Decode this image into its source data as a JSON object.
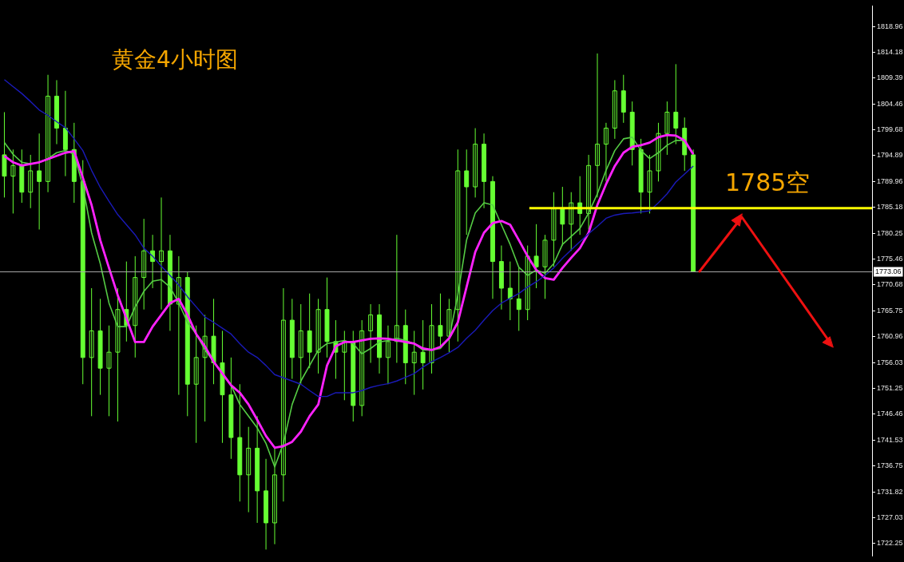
{
  "chart_data": {
    "type": "candlestick",
    "title": "黄金4小时图",
    "categories": [
      null,
      null,
      null,
      null,
      null,
      null,
      null,
      null,
      null,
      null,
      null,
      null,
      null,
      null,
      null,
      null,
      null,
      null,
      null,
      null,
      null,
      null,
      null,
      null,
      null,
      null,
      null,
      null,
      null,
      null,
      null,
      null,
      null,
      null,
      null,
      null,
      null,
      null,
      null,
      null,
      null,
      null,
      null,
      null,
      null,
      null,
      null,
      null,
      null,
      null,
      null,
      null,
      null,
      null,
      null,
      null,
      null,
      null,
      null,
      null,
      null,
      null,
      null,
      null,
      null,
      null,
      null,
      null,
      null,
      null,
      null,
      null,
      null,
      null,
      null,
      null,
      null,
      null,
      null,
      null,
      null,
      null,
      null,
      null,
      null,
      null,
      null,
      null,
      null,
      null,
      null,
      null,
      null,
      null,
      null,
      null,
      null,
      null,
      null,
      null
    ],
    "color": "#66ff33",
    "ohlc": [
      [
        1795,
        1803,
        1787,
        1791
      ],
      [
        1791,
        1796,
        1784,
        1793
      ],
      [
        1793,
        1796,
        1786,
        1788
      ],
      [
        1788,
        1795,
        1785,
        1792
      ],
      [
        1792,
        1799,
        1781,
        1790
      ],
      [
        1790,
        1810,
        1788,
        1806
      ],
      [
        1806,
        1809,
        1797,
        1800
      ],
      [
        1800,
        1807,
        1791,
        1796
      ],
      [
        1796,
        1801,
        1786,
        1790
      ],
      [
        1790,
        1794,
        1752,
        1757
      ],
      [
        1757,
        1770,
        1746,
        1762
      ],
      [
        1762,
        1768,
        1750,
        1755
      ],
      [
        1755,
        1763,
        1746,
        1758
      ],
      [
        1758,
        1770,
        1745,
        1766
      ],
      [
        1766,
        1775,
        1760,
        1763
      ],
      [
        1763,
        1776,
        1757,
        1772
      ],
      [
        1772,
        1783,
        1766,
        1777
      ],
      [
        1777,
        1780,
        1770,
        1775
      ],
      [
        1775,
        1787,
        1766,
        1777
      ],
      [
        1777,
        1780,
        1762,
        1767
      ],
      [
        1767,
        1776,
        1750,
        1772
      ],
      [
        1772,
        1773,
        1746,
        1752
      ],
      [
        1752,
        1763,
        1741,
        1757
      ],
      [
        1757,
        1765,
        1745,
        1761
      ],
      [
        1761,
        1768,
        1752,
        1756
      ],
      [
        1756,
        1762,
        1741,
        1750
      ],
      [
        1750,
        1757,
        1738,
        1742
      ],
      [
        1742,
        1752,
        1730,
        1735
      ],
      [
        1735,
        1744,
        1728,
        1740
      ],
      [
        1740,
        1746,
        1726,
        1732
      ],
      [
        1732,
        1738,
        1721,
        1726
      ],
      [
        1726,
        1740,
        1722,
        1735
      ],
      [
        1735,
        1770,
        1730,
        1764
      ],
      [
        1764,
        1768,
        1753,
        1757
      ],
      [
        1757,
        1767,
        1752,
        1762
      ],
      [
        1762,
        1769,
        1755,
        1758
      ],
      [
        1758,
        1768,
        1754,
        1766
      ],
      [
        1766,
        1772,
        1757,
        1760
      ],
      [
        1760,
        1764,
        1753,
        1758
      ],
      [
        1758,
        1762,
        1749,
        1760
      ],
      [
        1760,
        1762,
        1745,
        1748
      ],
      [
        1748,
        1764,
        1746,
        1762
      ],
      [
        1762,
        1767,
        1756,
        1765
      ],
      [
        1765,
        1767,
        1754,
        1757
      ],
      [
        1757,
        1763,
        1752,
        1760
      ],
      [
        1760,
        1780,
        1756,
        1763
      ],
      [
        1763,
        1766,
        1752,
        1756
      ],
      [
        1756,
        1762,
        1750,
        1758
      ],
      [
        1758,
        1764,
        1751,
        1756
      ],
      [
        1756,
        1767,
        1754,
        1763
      ],
      [
        1763,
        1769,
        1759,
        1761
      ],
      [
        1761,
        1768,
        1758,
        1766
      ],
      [
        1766,
        1796,
        1760,
        1792
      ],
      [
        1792,
        1796,
        1780,
        1789
      ],
      [
        1789,
        1800,
        1787,
        1797
      ],
      [
        1797,
        1799,
        1785,
        1790
      ],
      [
        1790,
        1791,
        1768,
        1775
      ],
      [
        1775,
        1778,
        1766,
        1770
      ],
      [
        1770,
        1775,
        1764,
        1768
      ],
      [
        1768,
        1774,
        1762,
        1766
      ],
      [
        1766,
        1778,
        1764,
        1776
      ],
      [
        1776,
        1782,
        1770,
        1774
      ],
      [
        1774,
        1780,
        1768,
        1779
      ],
      [
        1779,
        1788,
        1774,
        1785
      ],
      [
        1785,
        1789,
        1778,
        1782
      ],
      [
        1782,
        1788,
        1777,
        1786
      ],
      [
        1786,
        1791,
        1780,
        1784
      ],
      [
        1784,
        1795,
        1781,
        1793
      ],
      [
        1793,
        1814,
        1787,
        1797
      ],
      [
        1797,
        1801,
        1790,
        1800
      ],
      [
        1800,
        1809,
        1798,
        1807
      ],
      [
        1807,
        1810,
        1801,
        1803
      ],
      [
        1803,
        1805,
        1793,
        1796
      ],
      [
        1796,
        1798,
        1784,
        1788
      ],
      [
        1788,
        1795,
        1784,
        1792
      ],
      [
        1792,
        1801,
        1790,
        1799
      ],
      [
        1799,
        1805,
        1795,
        1803
      ],
      [
        1803,
        1812,
        1797,
        1800
      ],
      [
        1800,
        1802,
        1792,
        1795
      ],
      [
        1795,
        1796,
        1773.1,
        1773.1
      ],
      null,
      null,
      null,
      null,
      null,
      null,
      null,
      null,
      null,
      null,
      null,
      null,
      null,
      null,
      null,
      null,
      null,
      null,
      null,
      null
    ],
    "series": [
      {
        "type": "line",
        "color": "#55cc44",
        "values": [
          1797.3,
          1795.1,
          1793.6,
          1793.3,
          1793.6,
          1794.3,
          1795.4,
          1795.8,
          1795.1,
          1789.2,
          1780.4,
          1774.6,
          1767.2,
          1762.8,
          1762.8,
          1766.5,
          1769.4,
          1771.3,
          1771.6,
          1770.2,
          1767.2,
          1763.6,
          1761.4,
          1758.4,
          1756.2,
          1754.0,
          1751.8,
          1748.2,
          1746.0,
          1743.8,
          1740.9,
          1736.5,
          1740.9,
          1748.2,
          1752.6,
          1755.5,
          1758.4,
          1759.6,
          1759.9,
          1760.2,
          1759.6,
          1757.7,
          1758.7,
          1759.9,
          1760.2,
          1760.6,
          1760.2,
          1759.6,
          1758.4,
          1758.4,
          1758.7,
          1760.6,
          1768.7,
          1779.0,
          1784.1,
          1786.0,
          1785.6,
          1781.9,
          1778.2,
          1773.9,
          1772.4,
          1773.4,
          1772.8,
          1774.6,
          1778.2,
          1779.7,
          1781.2,
          1784.1,
          1787.7,
          1792.1,
          1795.8,
          1798.0,
          1798.3,
          1795.8,
          1794.3,
          1795.4,
          1796.8,
          1797.7,
          1797.7,
          1795.1,
          null,
          null,
          null,
          null,
          null,
          null,
          null,
          null,
          null,
          null,
          null,
          null,
          null,
          null,
          null,
          null,
          null,
          null,
          null,
          null
        ]
      },
      {
        "type": "line",
        "color": "#ff22ff",
        "values": [
          1794.8,
          1793.6,
          1793.0,
          1793.3,
          1793.6,
          1794.2,
          1794.8,
          1795.4,
          1795.7,
          1790.7,
          1785.6,
          1779.0,
          1773.8,
          1768.7,
          1764.3,
          1759.9,
          1759.9,
          1762.8,
          1765.0,
          1767.2,
          1768.0,
          1765.0,
          1761.4,
          1759.1,
          1756.2,
          1754.0,
          1751.8,
          1750.4,
          1748.2,
          1745.3,
          1742.3,
          1740.1,
          1740.4,
          1741.2,
          1743.1,
          1746.0,
          1748.2,
          1755.5,
          1759.1,
          1759.9,
          1759.9,
          1760.2,
          1760.5,
          1760.6,
          1760.5,
          1760.2,
          1759.9,
          1759.6,
          1758.7,
          1758.4,
          1759.0,
          1760.6,
          1763.6,
          1770.2,
          1776.8,
          1780.4,
          1782.2,
          1782.6,
          1781.9,
          1779.0,
          1776.0,
          1773.4,
          1771.9,
          1771.6,
          1773.8,
          1775.7,
          1777.5,
          1780.4,
          1785.6,
          1789.5,
          1792.9,
          1795.4,
          1796.5,
          1796.8,
          1797.3,
          1798.3,
          1798.7,
          1798.6,
          1797.7,
          1795.1,
          null,
          null,
          null,
          null,
          null,
          null,
          null,
          null,
          null,
          null,
          null,
          null,
          null,
          null,
          null,
          null,
          null,
          null,
          null,
          null
        ]
      },
      {
        "type": "line",
        "color": "#1a1ab8",
        "values": [
          1809.1,
          1807.8,
          1806.5,
          1805.0,
          1803.4,
          1802.4,
          1801.2,
          1800.1,
          1798.0,
          1795.8,
          1792.1,
          1788.9,
          1786.3,
          1783.8,
          1781.9,
          1780.0,
          1777.5,
          1776.0,
          1774.1,
          1772.4,
          1770.6,
          1768.4,
          1766.5,
          1764.6,
          1763.6,
          1762.5,
          1761.4,
          1759.6,
          1758.0,
          1757.0,
          1755.5,
          1753.8,
          1753.2,
          1752.6,
          1752.0,
          1750.8,
          1749.7,
          1749.7,
          1750.4,
          1750.4,
          1750.4,
          1750.8,
          1751.4,
          1751.8,
          1752.1,
          1752.6,
          1753.3,
          1754.0,
          1755.2,
          1756.2,
          1757.0,
          1757.9,
          1758.9,
          1760.6,
          1762.1,
          1764.0,
          1765.8,
          1767.2,
          1768.1,
          1769.0,
          1770.2,
          1771.2,
          1772.4,
          1773.8,
          1775.6,
          1777.2,
          1778.7,
          1780.2,
          1781.6,
          1783.1,
          1783.7,
          1784.0,
          1784.1,
          1784.3,
          1784.5,
          1786.0,
          1787.7,
          1789.9,
          1791.4,
          1792.9,
          null,
          null,
          null,
          null,
          null,
          null,
          null,
          null,
          null,
          null,
          null,
          null,
          null,
          null,
          null,
          null,
          null,
          null,
          null,
          null
        ]
      }
    ],
    "ylim": [
      1719.77,
      1822.92
    ],
    "yticks": [
      1722.25,
      1727.03,
      1731.82,
      1736.75,
      1741.53,
      1746.46,
      1751.25,
      1756.03,
      1760.96,
      1765.75,
      1770.68,
      1775.46,
      1780.25,
      1785.18,
      1789.96,
      1794.89,
      1799.68,
      1804.46,
      1809.39,
      1814.18,
      1818.96
    ],
    "ref_lines": [
      {
        "axis": "y",
        "value": 1785,
        "label": "1785空",
        "color": "#ffff00"
      },
      {
        "axis": "y",
        "value": 1773.06,
        "label": "1773.06",
        "color": "#a8a8a8"
      }
    ],
    "tick_labels": "y",
    "grid": false,
    "legend": false
  }
}
